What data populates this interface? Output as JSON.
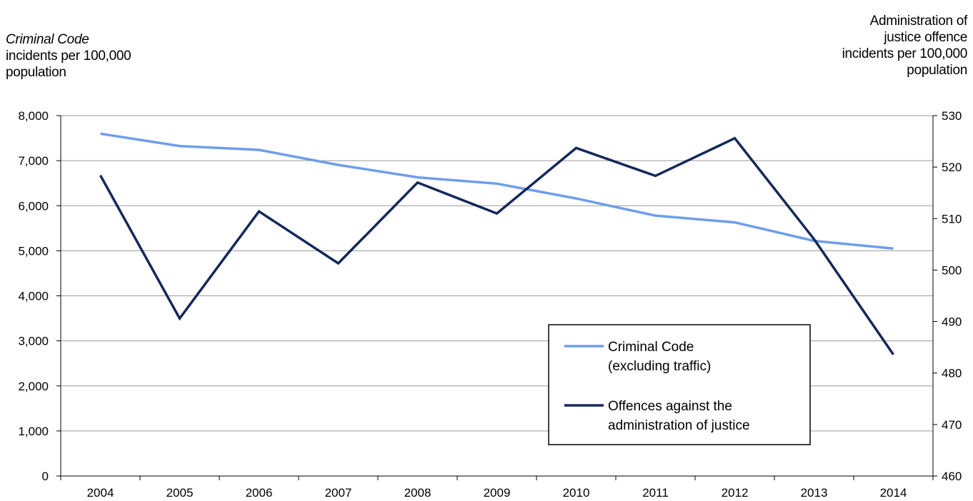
{
  "colors": {
    "criminal_code": "#6d9eeb",
    "administration_of_justice": "#14285a",
    "grid": "#9a9a9a",
    "axis": "#000000"
  },
  "left_axis_title": {
    "italic_part": "Criminal Code",
    "rest": "incidents per 100,000\npopulation"
  },
  "right_axis_title": "Administration of\njustice offence\nincidents per 100,000\npopulation",
  "chart_data": {
    "type": "line",
    "x": [
      "2004",
      "2005",
      "2006",
      "2007",
      "2008",
      "2009",
      "2010",
      "2011",
      "2012",
      "2013",
      "2014"
    ],
    "series": [
      {
        "name": "Criminal Code (excluding traffic)",
        "legend_lines": [
          "Criminal Code",
          "(excluding traffic)"
        ],
        "axis": "left",
        "color": "#6d9eeb",
        "values": [
          7600,
          7325,
          7240,
          6905,
          6630,
          6490,
          6160,
          5780,
          5630,
          5220,
          5050
        ]
      },
      {
        "name": "Offences against the administration of justice",
        "legend_lines": [
          "Offences against the",
          "administration of justice"
        ],
        "axis": "right",
        "color": "#14285a",
        "values": [
          518.4,
          490.6,
          511.4,
          501.3,
          517.0,
          511.0,
          523.7,
          518.3,
          525.6,
          506.0,
          483.6
        ]
      }
    ],
    "y_left": {
      "min": 0,
      "max": 8000,
      "ticks": [
        0,
        1000,
        2000,
        3000,
        4000,
        5000,
        6000,
        7000,
        8000
      ],
      "tick_labels": [
        "0",
        "1,000",
        "2,000",
        "3,000",
        "4,000",
        "5,000",
        "6,000",
        "7,000",
        "8,000"
      ]
    },
    "y_right": {
      "min": 460,
      "max": 530,
      "ticks": [
        460,
        470,
        480,
        490,
        500,
        510,
        520,
        530
      ],
      "tick_labels": [
        "460",
        "470",
        "480",
        "490",
        "500",
        "510",
        "520",
        "530"
      ]
    },
    "grid": true,
    "legend_position": "bottom-right"
  }
}
